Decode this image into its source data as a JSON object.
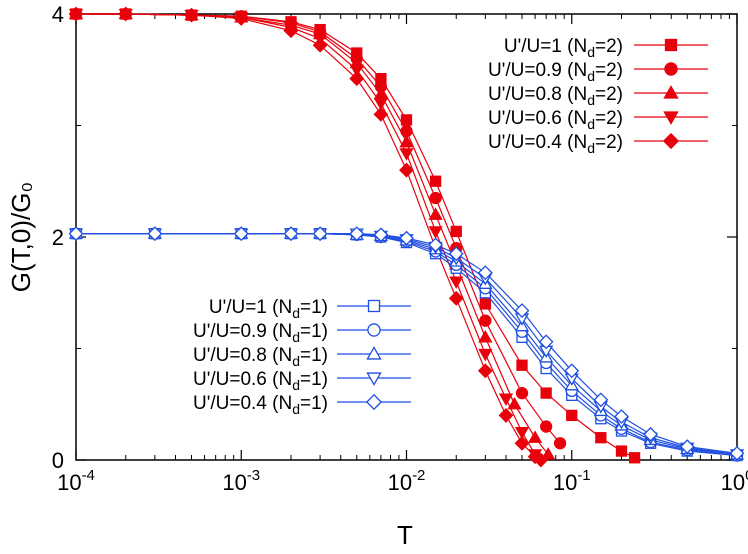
{
  "chart_data": {
    "type": "line",
    "xscale": "log",
    "xlabel": "T",
    "ylabel": "G(T,0)/G₀",
    "xlim": [
      0.0001,
      1
    ],
    "ylim": [
      0,
      4
    ],
    "x_ticks": [
      {
        "value": 0.0001,
        "base": "10",
        "exp": "-4"
      },
      {
        "value": 0.001,
        "base": "10",
        "exp": "-3"
      },
      {
        "value": 0.01,
        "base": "10",
        "exp": "-2"
      },
      {
        "value": 0.1,
        "base": "10",
        "exp": "-1"
      },
      {
        "value": 1,
        "base": "10",
        "exp": "0"
      }
    ],
    "y_ticks": [
      {
        "value": 0,
        "label": "0"
      },
      {
        "value": 2,
        "label": "2"
      },
      {
        "value": 4,
        "label": "4"
      }
    ],
    "grid": false,
    "legends": [
      {
        "placement": "top-right",
        "group": "Nd2"
      },
      {
        "placement": "center-left",
        "group": "Nd1"
      }
    ],
    "series": [
      {
        "name": "U'/U=1 (Nd=2)",
        "label_main": "U'/U=1 (N",
        "label_sub": "d",
        "label_tail": "=2)",
        "group": "Nd2",
        "color": "#e8000b",
        "marker": "square",
        "filled": true,
        "x": [
          0.0001,
          0.0002,
          0.0005,
          0.001,
          0.002,
          0.003,
          0.005,
          0.007,
          0.01,
          0.015,
          0.02,
          0.03,
          0.05,
          0.07,
          0.1,
          0.15,
          0.2,
          0.24
        ],
        "y": [
          4.0,
          4.0,
          3.99,
          3.98,
          3.93,
          3.86,
          3.65,
          3.42,
          3.05,
          2.5,
          2.05,
          1.4,
          0.85,
          0.6,
          0.4,
          0.2,
          0.08,
          0.02
        ]
      },
      {
        "name": "U'/U=0.9 (Nd=2)",
        "label_main": "U'/U=0.9 (N",
        "label_sub": "d",
        "label_tail": "=2)",
        "group": "Nd2",
        "color": "#e8000b",
        "marker": "circle",
        "filled": true,
        "x": [
          0.0001,
          0.0002,
          0.0005,
          0.001,
          0.002,
          0.003,
          0.005,
          0.007,
          0.01,
          0.015,
          0.02,
          0.03,
          0.05,
          0.07,
          0.085
        ],
        "y": [
          4.0,
          4.0,
          3.99,
          3.98,
          3.92,
          3.84,
          3.6,
          3.35,
          2.95,
          2.35,
          1.9,
          1.25,
          0.6,
          0.3,
          0.15
        ]
      },
      {
        "name": "U'/U=0.8 (Nd=2)",
        "label_main": "U'/U=0.8 (N",
        "label_sub": "d",
        "label_tail": "=2)",
        "group": "Nd2",
        "color": "#e8000b",
        "marker": "triangle-up",
        "filled": true,
        "x": [
          0.0001,
          0.0002,
          0.0005,
          0.001,
          0.002,
          0.003,
          0.005,
          0.007,
          0.01,
          0.015,
          0.02,
          0.03,
          0.045,
          0.06,
          0.072
        ],
        "y": [
          4.0,
          4.0,
          3.99,
          3.97,
          3.9,
          3.82,
          3.56,
          3.28,
          2.85,
          2.2,
          1.75,
          1.1,
          0.5,
          0.2,
          0.05
        ]
      },
      {
        "name": "U'/U=0.6 (Nd=2)",
        "label_main": "U'/U=0.6 (N",
        "label_sub": "d",
        "label_tail": "=2)",
        "group": "Nd2",
        "color": "#e8000b",
        "marker": "triangle-down",
        "filled": true,
        "x": [
          0.0001,
          0.0002,
          0.0005,
          0.001,
          0.002,
          0.003,
          0.005,
          0.007,
          0.01,
          0.015,
          0.02,
          0.03,
          0.04,
          0.05,
          0.06
        ],
        "y": [
          4.0,
          4.0,
          3.99,
          3.97,
          3.88,
          3.78,
          3.5,
          3.2,
          2.75,
          2.05,
          1.6,
          0.95,
          0.55,
          0.25,
          0.05
        ]
      },
      {
        "name": "U'/U=0.4 (Nd=2)",
        "label_main": "U'/U=0.4 (N",
        "label_sub": "d",
        "label_tail": "=2)",
        "group": "Nd2",
        "color": "#e8000b",
        "marker": "diamond",
        "filled": true,
        "x": [
          0.0001,
          0.0002,
          0.0005,
          0.001,
          0.002,
          0.003,
          0.005,
          0.007,
          0.01,
          0.015,
          0.02,
          0.03,
          0.04,
          0.05,
          0.06,
          0.065
        ],
        "y": [
          4.0,
          4.0,
          3.99,
          3.96,
          3.85,
          3.72,
          3.42,
          3.1,
          2.6,
          1.9,
          1.45,
          0.8,
          0.4,
          0.15,
          0.03,
          0.0
        ]
      },
      {
        "name": "U'/U=1 (Nd=1)",
        "label_main": "U'/U=1 (N",
        "label_sub": "d",
        "label_tail": "=1)",
        "group": "Nd1",
        "color": "#1f4fe0",
        "marker": "square",
        "filled": false,
        "x": [
          0.0001,
          0.0003,
          0.001,
          0.002,
          0.003,
          0.005,
          0.007,
          0.01,
          0.015,
          0.02,
          0.03,
          0.05,
          0.07,
          0.1,
          0.15,
          0.2,
          0.3,
          0.5,
          1
        ],
        "y": [
          2.03,
          2.03,
          2.03,
          2.03,
          2.03,
          2.02,
          2.0,
          1.95,
          1.85,
          1.72,
          1.5,
          1.1,
          0.82,
          0.58,
          0.37,
          0.26,
          0.15,
          0.08,
          0.04
        ]
      },
      {
        "name": "U'/U=0.9 (Nd=1)",
        "label_main": "U'/U=0.9 (N",
        "label_sub": "d",
        "label_tail": "=1)",
        "group": "Nd1",
        "color": "#1f4fe0",
        "marker": "circle",
        "filled": false,
        "x": [
          0.0001,
          0.0003,
          0.001,
          0.002,
          0.003,
          0.005,
          0.007,
          0.01,
          0.015,
          0.02,
          0.03,
          0.05,
          0.07,
          0.1,
          0.15,
          0.2,
          0.3,
          0.5,
          1
        ],
        "y": [
          2.03,
          2.03,
          2.03,
          2.03,
          2.03,
          2.02,
          2.0,
          1.96,
          1.87,
          1.75,
          1.54,
          1.15,
          0.87,
          0.62,
          0.4,
          0.28,
          0.16,
          0.09,
          0.04
        ]
      },
      {
        "name": "U'/U=0.8 (Nd=1)",
        "label_main": "U'/U=0.8 (N",
        "label_sub": "d",
        "label_tail": "=1)",
        "group": "Nd1",
        "color": "#1f4fe0",
        "marker": "triangle-up",
        "filled": false,
        "x": [
          0.0001,
          0.0003,
          0.001,
          0.002,
          0.003,
          0.005,
          0.007,
          0.01,
          0.015,
          0.02,
          0.03,
          0.05,
          0.07,
          0.1,
          0.15,
          0.2,
          0.3,
          0.5,
          1
        ],
        "y": [
          2.03,
          2.03,
          2.03,
          2.03,
          2.03,
          2.02,
          2.01,
          1.97,
          1.89,
          1.78,
          1.58,
          1.2,
          0.92,
          0.67,
          0.44,
          0.31,
          0.18,
          0.1,
          0.05
        ]
      },
      {
        "name": "U'/U=0.6 (Nd=1)",
        "label_main": "U'/U=0.6 (N",
        "label_sub": "d",
        "label_tail": "=1)",
        "group": "Nd1",
        "color": "#1f4fe0",
        "marker": "triangle-down",
        "filled": false,
        "x": [
          0.0001,
          0.0003,
          0.001,
          0.002,
          0.003,
          0.005,
          0.007,
          0.01,
          0.015,
          0.02,
          0.03,
          0.05,
          0.07,
          0.1,
          0.15,
          0.2,
          0.3,
          0.5,
          1
        ],
        "y": [
          2.03,
          2.03,
          2.03,
          2.03,
          2.03,
          2.03,
          2.01,
          1.98,
          1.91,
          1.81,
          1.63,
          1.27,
          0.98,
          0.73,
          0.48,
          0.34,
          0.2,
          0.11,
          0.05
        ]
      },
      {
        "name": "U'/U=0.4 (Nd=1)",
        "label_main": "U'/U=0.4 (N",
        "label_sub": "d",
        "label_tail": "=1)",
        "group": "Nd1",
        "color": "#1f4fe0",
        "marker": "diamond",
        "filled": false,
        "x": [
          0.0001,
          0.0003,
          0.001,
          0.002,
          0.003,
          0.005,
          0.007,
          0.01,
          0.015,
          0.02,
          0.03,
          0.05,
          0.07,
          0.1,
          0.15,
          0.2,
          0.3,
          0.5,
          1
        ],
        "y": [
          2.03,
          2.03,
          2.03,
          2.03,
          2.03,
          2.03,
          2.02,
          1.99,
          1.93,
          1.85,
          1.68,
          1.34,
          1.06,
          0.8,
          0.54,
          0.39,
          0.23,
          0.12,
          0.06
        ]
      }
    ]
  }
}
